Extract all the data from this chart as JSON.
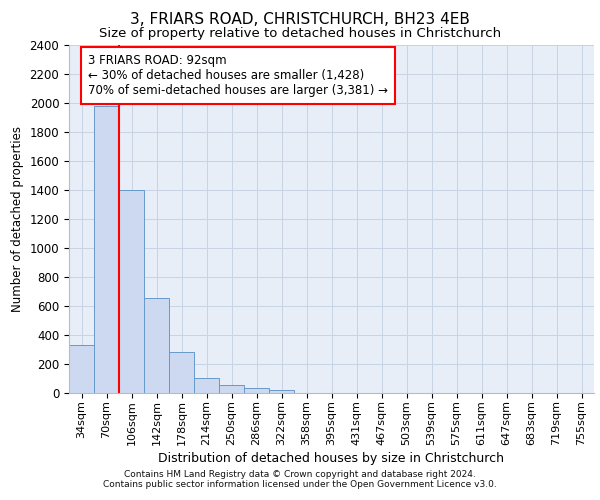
{
  "title1": "3, FRIARS ROAD, CHRISTCHURCH, BH23 4EB",
  "title2": "Size of property relative to detached houses in Christchurch",
  "xlabel": "Distribution of detached houses by size in Christchurch",
  "ylabel": "Number of detached properties",
  "footer1": "Contains HM Land Registry data © Crown copyright and database right 2024.",
  "footer2": "Contains public sector information licensed under the Open Government Licence v3.0.",
  "bar_labels": [
    "34sqm",
    "70sqm",
    "106sqm",
    "142sqm",
    "178sqm",
    "214sqm",
    "250sqm",
    "286sqm",
    "322sqm",
    "358sqm",
    "395sqm",
    "431sqm",
    "467sqm",
    "503sqm",
    "539sqm",
    "575sqm",
    "611sqm",
    "647sqm",
    "683sqm",
    "719sqm",
    "755sqm"
  ],
  "bar_heights": [
    325,
    1980,
    1400,
    650,
    280,
    100,
    50,
    30,
    20,
    0,
    0,
    0,
    0,
    0,
    0,
    0,
    0,
    0,
    0,
    0,
    0
  ],
  "bar_color": "#ccd9f0",
  "bar_edge_color": "#6699cc",
  "grid_color": "#c8d4e4",
  "bg_color": "#e8eef8",
  "red_line_x": 1.5,
  "annotation_line1": "3 FRIARS ROAD: 92sqm",
  "annotation_line2": "← 30% of detached houses are smaller (1,428)",
  "annotation_line3": "70% of semi-detached houses are larger (3,381) →",
  "ylim_max": 2400,
  "ytick_step": 200,
  "fig_width": 6.0,
  "fig_height": 5.0,
  "dpi": 100
}
